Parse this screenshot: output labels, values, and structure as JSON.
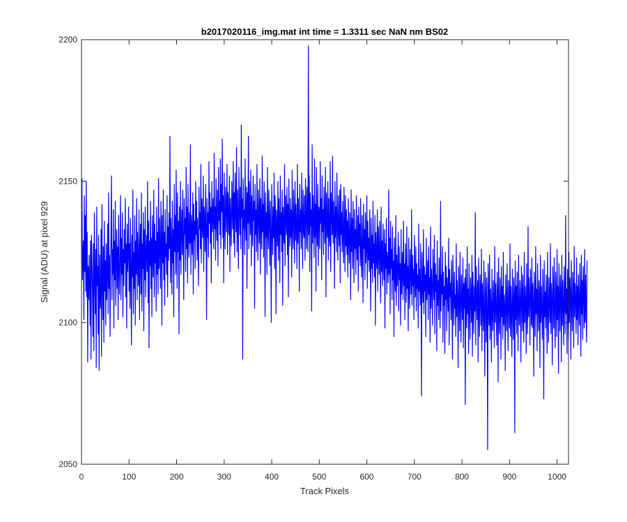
{
  "chart_data": {
    "type": "line",
    "title": "b2017020116_img.mat int time = 1.3311 sec  NaN nm BS02",
    "xlabel": "Track Pixels",
    "ylabel": "Signal (ADU) at pixel 929",
    "xlim": [
      0,
      1024
    ],
    "ylim": [
      2050,
      2200
    ],
    "x_ticks": [
      0,
      100,
      200,
      300,
      400,
      500,
      600,
      700,
      800,
      900,
      1000
    ],
    "y_ticks": [
      2050,
      2100,
      2150,
      2200
    ],
    "x_tick_labels": [
      "0",
      "100",
      "200",
      "300",
      "400",
      "500",
      "600",
      "700",
      "800",
      "900",
      "1000"
    ],
    "y_tick_labels": [
      "2050",
      "2100",
      "2150",
      "2200"
    ],
    "grid": false,
    "series_color": "#0000ff",
    "x_start": 1,
    "x_step": 1,
    "values": [
      2151,
      2115,
      2123,
      2129,
      2101,
      2145,
      2118,
      2138,
      2111,
      2150,
      2109,
      2132,
      2086,
      2120,
      2108,
      2124,
      2113,
      2099,
      2129,
      2087,
      2131,
      2121,
      2112,
      2095,
      2128,
      2090,
      2139,
      2117,
      2103,
      2126,
      2084,
      2141,
      2113,
      2120,
      2096,
      2131,
      2083,
      2124,
      2110,
      2105,
      2133,
      2088,
      2142,
      2115,
      2101,
      2127,
      2093,
      2136,
      2111,
      2122,
      2099,
      2128,
      2108,
      2117,
      2135,
      2103,
      2146,
      2112,
      2124,
      2095,
      2119,
      2131,
      2152,
      2108,
      2126,
      2117,
      2140,
      2098,
      2129,
      2115,
      2143,
      2106,
      2122,
      2133,
      2112,
      2127,
      2101,
      2138,
      2119,
      2110,
      2125,
      2145,
      2108,
      2130,
      2117,
      2139,
      2102,
      2126,
      2113,
      2133,
      2121,
      2144,
      2109,
      2128,
      2098,
      2135,
      2118,
      2124,
      2141,
      2111,
      2128,
      2105,
      2137,
      2119,
      2092,
      2131,
      2116,
      2147,
      2103,
      2125,
      2112,
      2138,
      2099,
      2129,
      2117,
      2144,
      2108,
      2132,
      2121,
      2113,
      2140,
      2101,
      2126,
      2135,
      2110,
      2146,
      2104,
      2128,
      2119,
      2139,
      2097,
      2133,
      2115,
      2141,
      2109,
      2125,
      2131,
      2118,
      2150,
      2107,
      2136,
      2091,
      2129,
      2120,
      2143,
      2112,
      2130,
      2102,
      2138,
      2124,
      2116,
      2147,
      2109,
      2135,
      2121,
      2129,
      2104,
      2141,
      2117,
      2132,
      2110,
      2151,
      2119,
      2137,
      2126,
      2112,
      2143,
      2130,
      2099,
      2138,
      2121,
      2147,
      2115,
      2132,
      2106,
      2140,
      2123,
      2128,
      2117,
      2145,
      2109,
      2134,
      2122,
      2139,
      2126,
      2166,
      2114,
      2137,
      2128,
      2110,
      2143,
      2121,
      2133,
      2102,
      2149,
      2125,
      2138,
      2117,
      2154,
      2130,
      2112,
      2146,
      2125,
      2136,
      2096,
      2141,
      2122,
      2150,
      2117,
      2133,
      2140,
      2124,
      2147,
      2128,
      2108,
      2144,
      2131,
      2137,
      2118,
      2155,
      2126,
      2141,
      2114,
      2149,
      2132,
      2123,
      2139,
      2128,
      2163,
      2117,
      2138,
      2133,
      2124,
      2146,
      2110,
      2142,
      2129,
      2136,
      2119,
      2150,
      2131,
      2143,
      2122,
      2137,
      2128,
      2113,
      2148,
      2133,
      2139,
      2126,
      2156,
      2121,
      2144,
      2135,
      2130,
      2152,
      2118,
      2141,
      2137,
      2125,
      2149,
      2133,
      2101,
      2144,
      2130,
      2139,
      2123,
      2157,
      2135,
      2146,
      2128,
      2141,
      2114,
      2150,
      2132,
      2138,
      2144,
      2126,
      2160,
      2133,
      2141,
      2122,
      2151,
      2137,
      2129,
      2147,
      2120,
      2155,
      2136,
      2143,
      2131,
      2158,
      2126,
      2149,
      2139,
      2165,
      2130,
      2145,
      2114,
      2153,
      2137,
      2126,
      2148,
      2141,
      2132,
      2156,
      2124,
      2146,
      2139,
      2131,
      2152,
      2118,
      2144,
      2136,
      2127,
      2150,
      2140,
      2133,
      2157,
      2128,
      2146,
      2123,
      2153,
      2139,
      2132,
      2162,
      2125,
      2147,
      2137,
      2119,
      2155,
      2141,
      2131,
      2148,
      2126,
      2170,
      2137,
      2144,
      2087,
      2151,
      2133,
      2140,
      2124,
      2158,
      2136,
      2129,
      2148,
      2112,
      2146,
      2135,
      2166,
      2126,
      2150,
      2138,
      2131,
      2154,
      2120,
      2145,
      2137,
      2127,
      2152,
      2136,
      2143,
      2105,
      2149,
      2131,
      2140,
      2125,
      2156,
      2134,
      2122,
      2147,
      2138,
      2128,
      2151,
      2117,
      2144,
      2135,
      2126,
      2159,
      2132,
      2142,
      2123,
      2150,
      2137,
      2102,
      2146,
      2130,
      2139,
      2117,
      2155,
      2133,
      2126,
      2147,
      2138,
      2120,
      2143,
      2131,
      2100,
      2149,
      2136,
      2124,
      2141,
      2130,
      2153,
      2119,
      2145,
      2138,
      2103,
      2140,
      2134,
      2127,
      2150,
      2122,
      2144,
      2136,
      2114,
      2152,
      2131,
      2139,
      2125,
      2147,
      2106,
      2141,
      2133,
      2128,
      2156,
      2120,
      2145,
      2137,
      2131,
      2148,
      2124,
      2142,
      2109,
      2151,
      2135,
      2127,
      2144,
      2130,
      2140,
      2116,
      2154,
      2133,
      2126,
      2147,
      2138,
      2121,
      2150,
      2129,
      2142,
      2134,
      2119,
      2156,
      2128,
      2144,
      2136,
      2111,
      2149,
      2132,
      2140,
      2126,
      2153,
      2137,
      2119,
      2147,
      2133,
      2130,
      2145,
      2122,
      2151,
      2136,
      2126,
      2148,
      2140,
      2125,
      2198,
      2131,
      2152,
      2118,
      2146,
      2134,
      2140,
      2104,
      2163,
      2128,
      2145,
      2136,
      2123,
      2158,
      2130,
      2142,
      2111,
      2155,
      2134,
      2127,
      2149,
      2120,
      2141,
      2139,
      2126,
      2157,
      2135,
      2144,
      2115,
      2152,
      2132,
      2140,
      2124,
      2148,
      2137,
      2128,
      2155,
      2109,
      2146,
      2135,
      2130,
      2150,
      2122,
      2144,
      2133,
      2127,
      2157,
      2118,
      2146,
      2139,
      2131,
      2159,
      2128,
      2143,
      2136,
      2112,
      2150,
      2130,
      2141,
      2125,
      2153,
      2136,
      2122,
      2145,
      2133,
      2127,
      2147,
      2114,
      2149,
      2131,
      2139,
      2125,
      2143,
      2130,
      2121,
      2148,
      2134,
      2118,
      2145,
      2127,
      2140,
      2124,
      2136,
      2116,
      2144,
      2129,
      2121,
      2139,
      2132,
      2108,
      2147,
      2125,
      2137,
      2119,
      2143,
      2130,
      2114,
      2140,
      2126,
      2133,
      2117,
      2145,
      2128,
      2122,
      2138,
      2111,
      2141,
      2127,
      2135,
      2120,
      2144,
      2124,
      2116,
      2138,
      2129,
      2107,
      2142,
      2126,
      2133,
      2115,
      2139,
      2121,
      2127,
      2145,
      2112,
      2136,
      2122,
      2130,
      2118,
      2140,
      2125,
      2104,
      2137,
      2119,
      2131,
      2114,
      2143,
      2121,
      2128,
      2116,
      2138,
      2099,
      2132,
      2124,
      2119,
      2140,
      2111,
      2134,
      2126,
      2117,
      2136,
      2123,
      2107,
      2141,
      2118,
      2129,
      2113,
      2135,
      2122,
      2115,
      2133,
      2098,
      2128,
      2119,
      2137,
      2110,
      2125,
      2121,
      2114,
      2147,
      2117,
      2130,
      2103,
      2136,
      2119,
      2126,
      2108,
      2134,
      2115,
      2122,
      2095,
      2130,
      2117,
      2111,
      2138,
      2106,
      2124,
      2113,
      2119,
      2132,
      2104,
      2127,
      2115,
      2121,
      2099,
      2133,
      2110,
      2118,
      2125,
      2108,
      2136,
      2113,
      2121,
      2101,
      2128,
      2116,
      2107,
      2134,
      2112,
      2120,
      2097,
      2130,
      2114,
      2105,
      2126,
      2118,
      2110,
      2140,
      2106,
      2124,
      2113,
      2119,
      2101,
      2131,
      2116,
      2109,
      2127,
      2104,
      2121,
      2112,
      2117,
      2098,
      2135,
      2111,
      2119,
      2106,
      2128,
      2113,
      2074,
      2125,
      2115,
      2107,
      2133,
      2103,
      2120,
      2111,
      2117,
      2095,
      2130,
      2108,
      2114,
      2122,
      2101,
      2127,
      2110,
      2116,
      2093,
      2134,
      2105,
      2119,
      2112,
      2099,
      2126,
      2114,
      2108,
      2131,
      2096,
      2121,
      2111,
      2117,
      2090,
      2129,
      2106,
      2115,
      2101,
      2123,
      2112,
      2098,
      2143,
      2104,
      2117,
      2110,
      2127,
      2093,
      2118,
      2106,
      2113,
      2089,
      2125,
      2108,
      2120,
      2097,
      2116,
      2111,
      2104,
      2130,
      2092,
      2119,
      2109,
      2114,
      2101,
      2122,
      2106,
      2087,
      2124,
      2113,
      2099,
      2118,
      2105,
      2110,
      2095,
      2128,
      2102,
      2115,
      2108,
      2084,
      2120,
      2111,
      2097,
      2125,
      2106,
      2093,
      2117,
      2109,
      2101,
      2123,
      2091,
      2114,
      2105,
      2116,
      2071,
      2119,
      2108,
      2098,
      2127,
      2103,
      2112,
      2089,
      2121,
      2106,
      2094,
      2116,
      2110,
      2100,
      2124,
      2088,
      2118,
      2107,
      2096,
      2113,
      2104,
      2139,
      2092,
      2120,
      2109,
      2101,
      2115,
      2086,
      2123,
      2105,
      2095,
      2117,
      2111,
      2099,
      2126,
      2090,
      2114,
      2107,
      2097,
      2122,
      2102,
      2081,
      2118,
      2110,
      2093,
      2116,
      2104,
      2055,
      2121,
      2108,
      2099,
      2124,
      2094,
      2112,
      2106,
      2086,
      2119,
      2103,
      2097,
      2115,
      2109,
      2091,
      2127,
      2100,
      2114,
      2105,
      2092,
      2118,
      2111,
      2079,
      2123,
      2104,
      2096,
      2116,
      2108,
      2087,
      2120,
      2102,
      2113,
      2094,
      2125,
      2099,
      2110,
      2106,
      2083,
      2117,
      2108,
      2097,
      2121,
      2103,
      2090,
      2115,
      2109,
      2098,
      2128,
      2095,
      2113,
      2104,
      2088,
      2119,
      2107,
      2094,
      2116,
      2110,
      2061,
      2122,
      2101,
      2113,
      2096,
      2118,
      2106,
      2090,
      2124,
      2103,
      2099,
      2115,
      2108,
      2086,
      2120,
      2111,
      2097,
      2117,
      2104,
      2093,
      2125,
      2100,
      2113,
      2107,
      2089,
      2121,
      2105,
      2096,
      2134,
      2102,
      2116,
      2108,
      2092,
      2119,
      2111,
      2099,
      2123,
      2098,
      2114,
      2106,
      2081,
      2118,
      2109,
      2095,
      2127,
      2103,
      2112,
      2090,
      2121,
      2107,
      2097,
      2115,
      2110,
      2084,
      2124,
      2100,
      2113,
      2105,
      2094,
      2119,
      2108,
      2073,
      2122,
      2102,
      2111,
      2098,
      2117,
      2106,
      2089,
      2125,
      2104,
      2093,
      2116,
      2109,
      2100,
      2128,
      2096,
      2114,
      2107,
      2085,
      2120,
      2112,
      2098,
      2123,
      2103,
      2091,
      2118,
      2110,
      2095,
      2126,
      2101,
      2113,
      2082,
      2121,
      2108,
      2097,
      2117,
      2111,
      2086,
      2124,
      2099,
      2115,
      2106,
      2092,
      2120,
      2109,
      2096,
      2138,
      2103,
      2112,
      2089,
      2119,
      2107,
      2094,
      2125,
      2100,
      2116,
      2110,
      2087,
      2122,
      2105,
      2097,
      2118,
      2112,
      2091,
      2127,
      2102,
      2114,
      2108,
      2096,
      2123,
      2101,
      2113,
      2092,
      2117,
      2106,
      2099,
      2121,
      2109,
      2088,
      2124,
      2103,
      2115,
      2094,
      2120,
      2111,
      2098,
      2126,
      2100,
      2117,
      2105,
      2093,
      2122
    ]
  }
}
